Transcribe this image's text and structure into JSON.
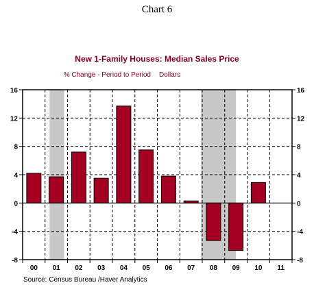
{
  "header": "Chart 6",
  "title": "New 1-Family Houses: Median Sales Price",
  "subtitle_left": "% Change - Period to Period",
  "subtitle_right": "Dollars",
  "source": "Source:  Census Bureau /Haver Analytics",
  "colors": {
    "bar": "#a50021",
    "title": "#8b0020",
    "shade": "#c8c8c8",
    "axis": "#000000"
  },
  "chart_data": {
    "type": "bar",
    "categories": [
      "00",
      "01",
      "02",
      "03",
      "04",
      "05",
      "06",
      "07",
      "08",
      "09",
      "10",
      "11"
    ],
    "values": [
      4.2,
      3.7,
      7.2,
      3.5,
      13.7,
      7.5,
      3.8,
      0.3,
      -5.3,
      -6.7,
      2.9,
      null
    ],
    "ylim": [
      -8,
      16
    ],
    "yticks": [
      -8,
      -4,
      0,
      4,
      8,
      12,
      16
    ],
    "ytick_labels": [
      "-8",
      "-4",
      "0",
      "4",
      "8",
      "12",
      "16"
    ],
    "recession_shading": [
      {
        "start": 2001.2,
        "end": 2001.85
      },
      {
        "start": 2007.95,
        "end": 2009.5
      }
    ],
    "grid": true,
    "legend": "none"
  }
}
